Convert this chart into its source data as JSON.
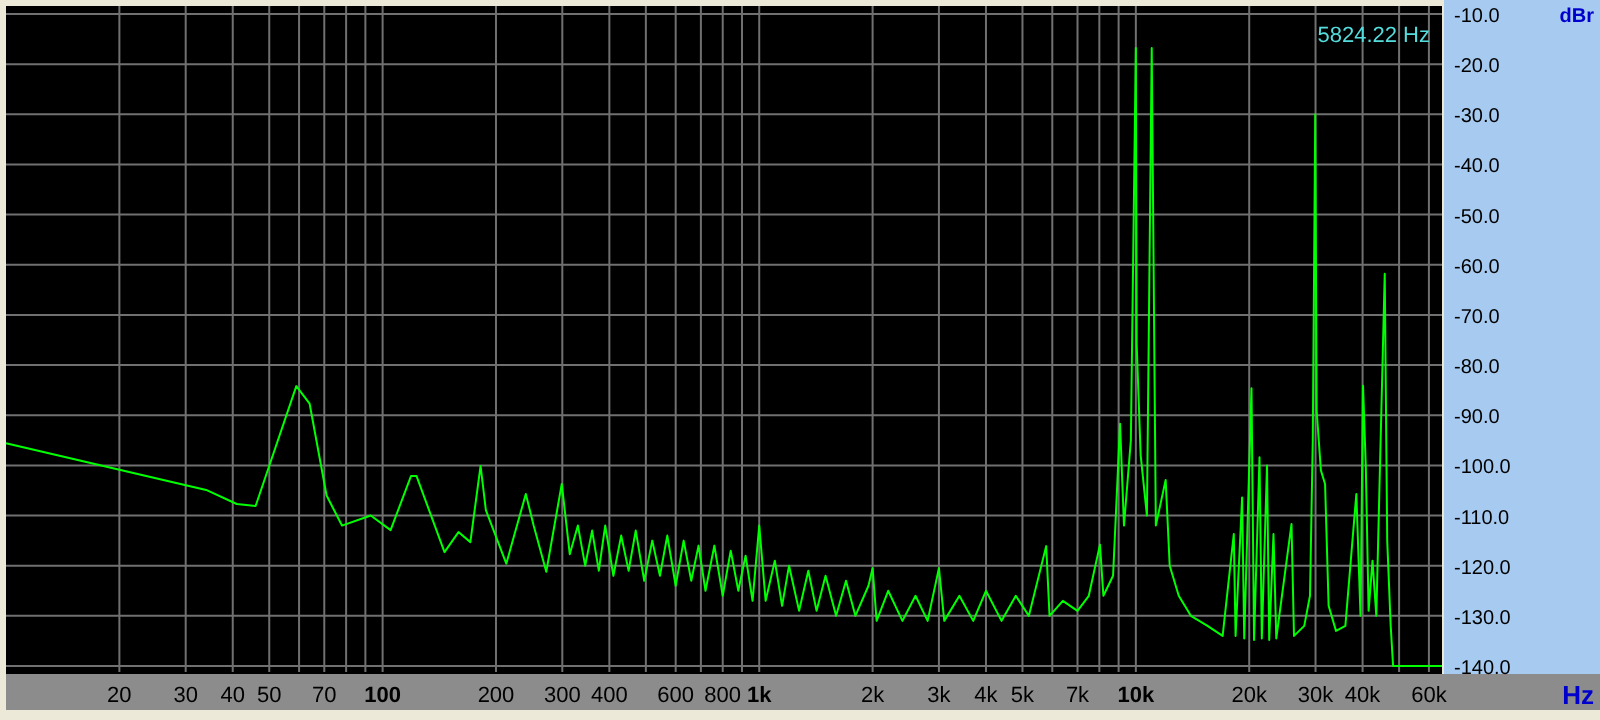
{
  "chart_data": {
    "type": "line",
    "xlabel": "Hz",
    "ylabel": "dBr",
    "annotations": [
      "5824.22 Hz"
    ],
    "log": "x",
    "grid": true,
    "line_style": "solid",
    "xlim": [
      10,
      65000
    ],
    "ylim": [
      -140,
      -10
    ],
    "xticks": [
      20,
      30,
      40,
      50,
      {
        "value": 60,
        "label": null
      },
      70,
      {
        "value": 80,
        "label": null
      },
      {
        "value": 90,
        "label": null
      },
      100,
      200,
      300,
      400,
      {
        "value": 500,
        "label": null
      },
      600,
      {
        "value": 700,
        "label": null
      },
      800,
      {
        "value": 900,
        "label": null
      },
      {
        "value": 1000,
        "label": "1k"
      },
      {
        "value": 2000,
        "label": "2k"
      },
      {
        "value": 3000,
        "label": "3k"
      },
      {
        "value": 4000,
        "label": "4k"
      },
      {
        "value": 5000,
        "label": "5k"
      },
      {
        "value": 6000,
        "label": null
      },
      {
        "value": 7000,
        "label": "7k"
      },
      {
        "value": 8000,
        "label": null
      },
      {
        "value": 9000,
        "label": null
      },
      {
        "value": 10000,
        "label": "10k"
      },
      {
        "value": 20000,
        "label": "20k"
      },
      {
        "value": 30000,
        "label": "30k"
      },
      {
        "value": 40000,
        "label": "40k"
      },
      {
        "value": 50000,
        "label": null
      },
      {
        "value": 60000,
        "label": "60k"
      }
    ],
    "yticks": [
      {
        "value": -10,
        "label": "-10.0"
      },
      {
        "value": -20,
        "label": "-20.0"
      },
      {
        "value": -30,
        "label": "-30.0"
      },
      {
        "value": -40,
        "label": "-40.0"
      },
      {
        "value": -50,
        "label": "-50.0"
      },
      {
        "value": -60,
        "label": "-60.0"
      },
      {
        "value": -70,
        "label": "-70.0"
      },
      {
        "value": -80,
        "label": "-80.0"
      },
      {
        "value": -90,
        "label": "-90.0"
      },
      {
        "value": -100,
        "label": "-100.0"
      },
      {
        "value": -110,
        "label": "-110.0"
      },
      {
        "value": -120,
        "label": "-120.0"
      },
      {
        "value": -130,
        "label": "-130.0"
      },
      {
        "value": -140,
        "label": "-140.0"
      }
    ],
    "series": [
      {
        "color": "#00ff00",
        "x": [
          10,
          34,
          41,
          46,
          59,
          64,
          71,
          78,
          93,
          105,
          119,
          123,
          146,
          159,
          171,
          182,
          188,
          213,
          240,
          252,
          272,
          299,
          314,
          330,
          345,
          360,
          375,
          390,
          410,
          430,
          450,
          470,
          495,
          520,
          545,
          570,
          600,
          630,
          660,
          690,
          720,
          760,
          800,
          840,
          880,
          920,
          960,
          1000,
          1040,
          1100,
          1150,
          1200,
          1276,
          1350,
          1420,
          1500,
          1600,
          1700,
          1800,
          1950,
          2000,
          2050,
          2200,
          2400,
          2600,
          2800,
          3000,
          3100,
          3400,
          3700,
          4000,
          4400,
          4800,
          5200,
          5780,
          5900,
          6400,
          7000,
          7500,
          8030,
          8200,
          8700,
          9080,
          9300,
          9700,
          10000,
          10050,
          10300,
          10700,
          11020,
          11300,
          12000,
          12300,
          13000,
          14000,
          15500,
          17000,
          18200,
          18400,
          19150,
          19400,
          20280,
          20600,
          21300,
          21600,
          22300,
          22600,
          23200,
          23600,
          25900,
          26300,
          28000,
          29000,
          29500,
          29950,
          30200,
          31000,
          31800,
          32500,
          34000,
          36000,
          38500,
          39500,
          40100,
          40800,
          41500,
          42500,
          43500,
          45800,
          46500,
          47500,
          48200,
          65000
        ],
        "values": [
          -95.6,
          -104.9,
          -107.7,
          -108.1,
          -84.2,
          -87.7,
          -106,
          -112,
          -110,
          -112.9,
          -102.1,
          -102.1,
          -117.3,
          -113.3,
          -115.3,
          -100.1,
          -108.9,
          -119.6,
          -105.7,
          -112.1,
          -121.2,
          -103.7,
          -117.7,
          -112,
          -120,
          -113,
          -121,
          -112,
          -122,
          -114,
          -121,
          -113,
          -123,
          -115,
          -122,
          -114,
          -124,
          -115,
          -123,
          -116,
          -125,
          -116,
          -126,
          -117,
          -125,
          -118,
          -127,
          -112,
          -127,
          -119,
          -128,
          -120,
          -129,
          -121,
          -129,
          -122,
          -130,
          -123,
          -130,
          -124,
          -120.5,
          -131,
          -125,
          -131,
          -126,
          -131,
          -120.5,
          -131,
          -126,
          -131,
          -125,
          -131,
          -126,
          -130,
          -116.1,
          -130,
          -127,
          -129,
          -126,
          -115.8,
          -126,
          -122,
          -91.7,
          -112,
          -95,
          -16.8,
          -75.8,
          -98,
          -110,
          -16.8,
          -112,
          -102.9,
          -120,
          -126,
          -130,
          -132,
          -134,
          -113.7,
          -134,
          -106.4,
          -134.5,
          -84.6,
          -134.8,
          -98.4,
          -134.5,
          -100,
          -134.8,
          -113.7,
          -134.5,
          -111.7,
          -134,
          -132,
          -126,
          -95,
          -30,
          -89,
          -101,
          -103.7,
          -128,
          -133,
          -132,
          -105.7,
          -130,
          -84.1,
          -100.4,
          -129,
          -119,
          -130,
          -61.8,
          -115,
          -132,
          -140,
          -140
        ]
      }
    ]
  }
}
